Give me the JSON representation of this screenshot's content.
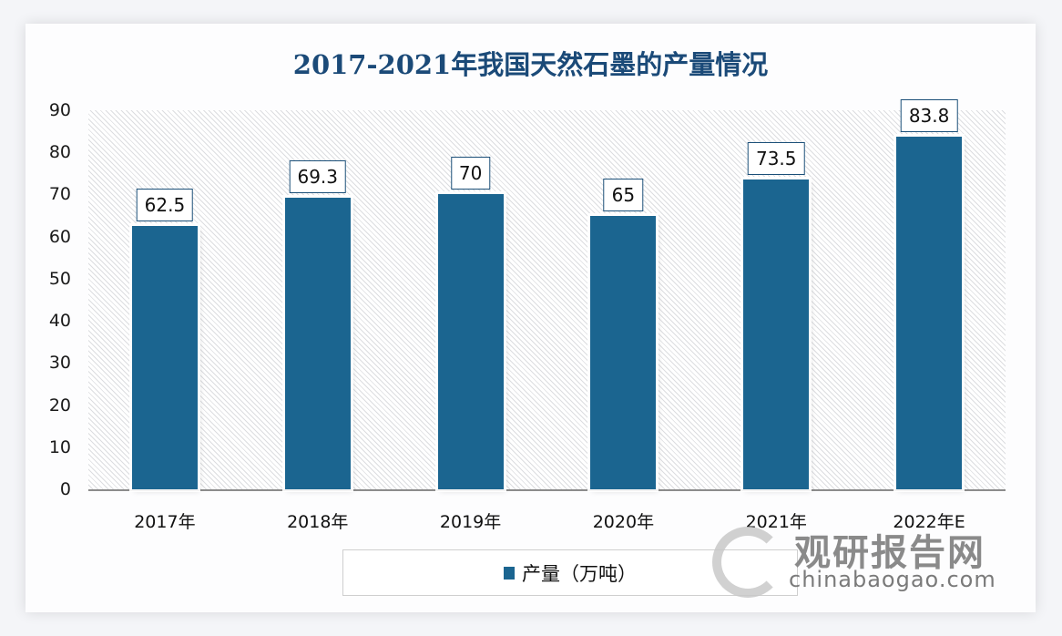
{
  "chart_data": {
    "type": "bar",
    "title": "2017-2021年我国天然石墨的产量情况",
    "categories": [
      "2017年",
      "2018年",
      "2019年",
      "2020年",
      "2021年",
      "2022年E"
    ],
    "series": [
      {
        "name": "产量（万吨）",
        "values": [
          62.5,
          69.3,
          70,
          65,
          73.5,
          83.8
        ],
        "color": "#1b6590"
      }
    ],
    "value_labels": [
      "62.5",
      "69.3",
      "70",
      "65",
      "73.5",
      "83.8"
    ],
    "xlabel": "",
    "ylabel": "",
    "ylim": [
      0,
      90
    ],
    "yticks": [
      "0",
      "10",
      "20",
      "30",
      "40",
      "50",
      "60",
      "70",
      "80",
      "90"
    ],
    "grid": false,
    "legend_position": "bottom"
  },
  "watermark": {
    "cn": "观研报告网",
    "en": "chinabaogao.com"
  }
}
